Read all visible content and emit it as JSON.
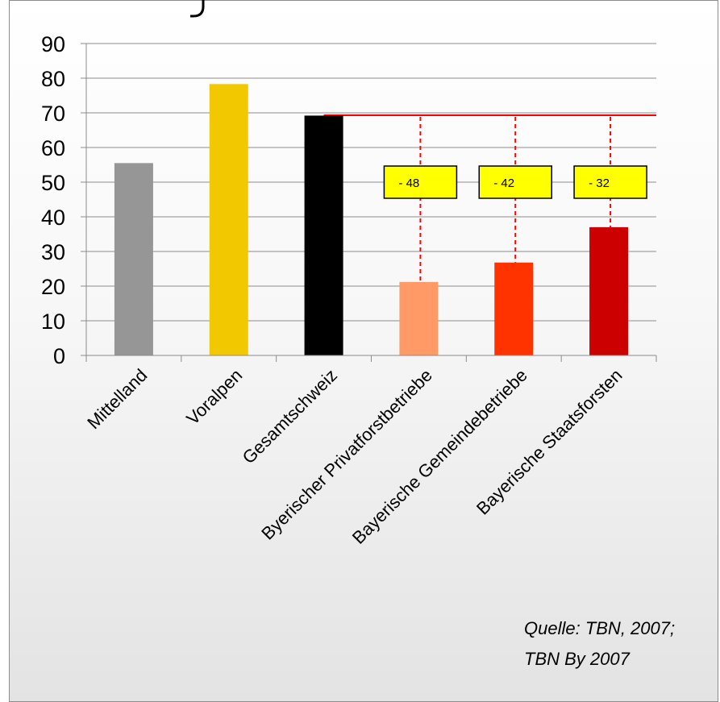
{
  "chart_data": {
    "type": "bar",
    "title": "",
    "xlabel": "",
    "ylabel": "",
    "ylim": [
      0,
      90
    ],
    "yticks": [
      0,
      10,
      20,
      30,
      40,
      50,
      60,
      70,
      80,
      90
    ],
    "grid": true,
    "categories": [
      "Mittelland",
      "Voralpen",
      "Gesamtschweiz",
      "Byerischer Privatforstbetriebe",
      "Bayerische Gemeindebetriebe",
      "Bayerische Staatsforsten"
    ],
    "values": [
      55.5,
      78.3,
      69.2,
      21.2,
      26.8,
      37.0
    ],
    "colors": [
      "#969696",
      "#f2c800",
      "#000000",
      "#ff9966",
      "#ff3300",
      "#cc0000"
    ],
    "reference_line": {
      "value": 69.3,
      "color": "#ff0000"
    },
    "annotations": [
      {
        "category_index": 3,
        "label": "- 48",
        "value": 50
      },
      {
        "category_index": 4,
        "label": "- 42",
        "value": 50
      },
      {
        "category_index": 5,
        "label": "- 32",
        "value": 50
      }
    ],
    "annotation_color": "#ffff00",
    "source_note": [
      "Quelle: TBN, 2007;",
      "TBN By 2007"
    ]
  }
}
